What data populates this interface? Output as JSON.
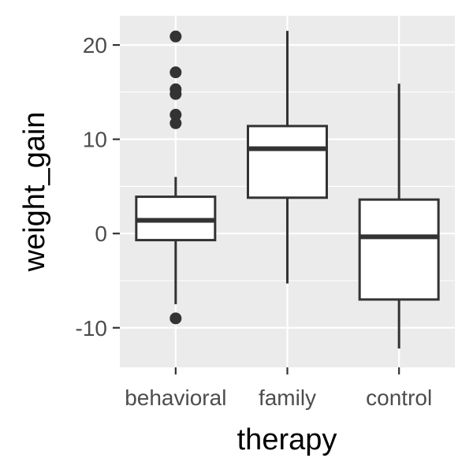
{
  "chart_data": {
    "type": "box",
    "xlabel": "therapy",
    "ylabel": "weight_gain",
    "ylim": [
      -14.2,
      23.1
    ],
    "yticks": [
      -10,
      0,
      10,
      20
    ],
    "yticklabels": [
      "-10",
      "0",
      "10",
      "20"
    ],
    "grid": true,
    "categories": [
      "behavioral",
      "family",
      "control"
    ],
    "boxes": [
      {
        "category": "behavioral",
        "whisker_low": -7.5,
        "q1": -0.7,
        "median": 1.4,
        "q3": 3.9,
        "whisker_high": 6.0,
        "outliers": [
          -9.0,
          11.7,
          12.6,
          14.8,
          15.3,
          17.1,
          20.9
        ]
      },
      {
        "category": "family",
        "whisker_low": -5.3,
        "q1": 3.8,
        "median": 9.0,
        "q3": 11.4,
        "whisker_high": 21.5,
        "outliers": []
      },
      {
        "category": "control",
        "whisker_low": -12.2,
        "q1": -7.0,
        "median": -0.35,
        "q3": 3.6,
        "whisker_high": 15.9,
        "outliers": []
      }
    ],
    "colors": {
      "panel": "#ebebeb",
      "grid": "#ffffff",
      "box_fill": "#ffffff",
      "line": "#333333",
      "tick_text": "#4d4d4d",
      "title_text": "#000000"
    }
  }
}
